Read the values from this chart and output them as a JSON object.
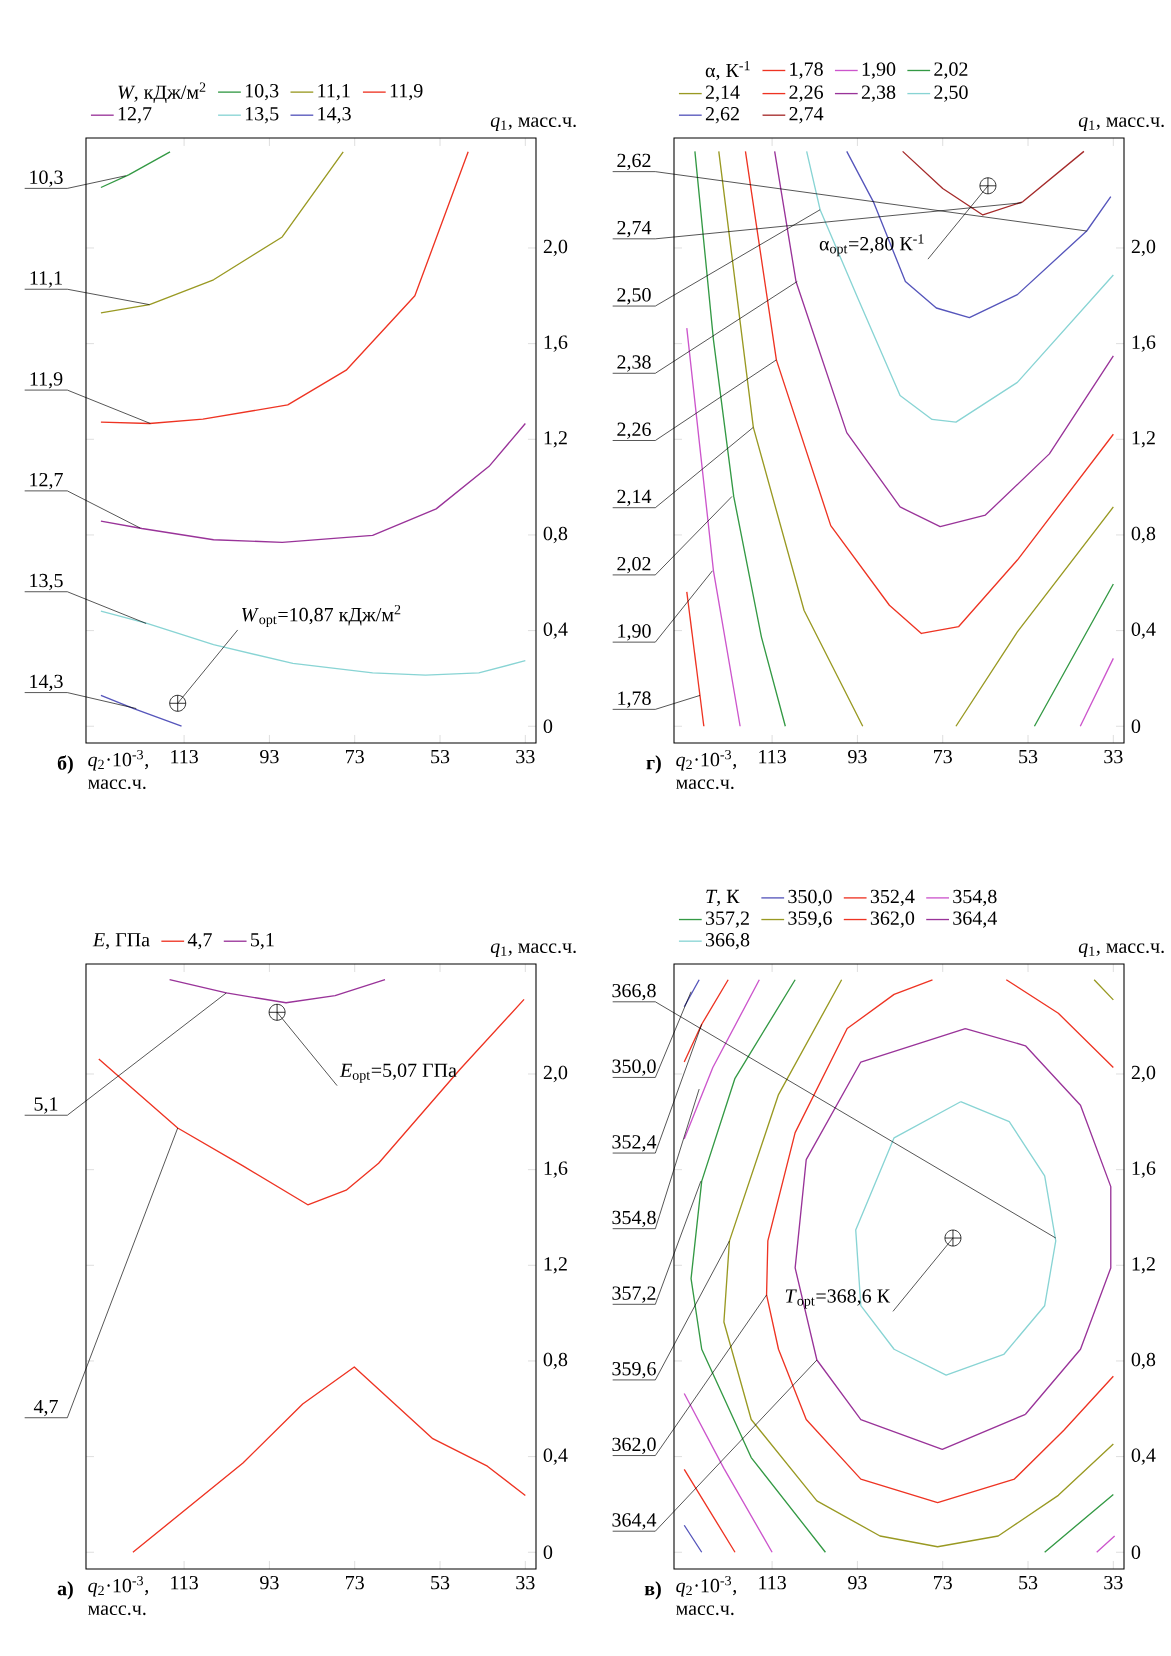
{
  "chart_data": [
    {
      "type": "line",
      "title": "а)",
      "xlabel": "*q*$_{2}$·10$^{-3}$, масс.ч.",
      "ylabel": "*q*$_{1}$, масс.ч.",
      "legend_title": "*E*, ГПа",
      "legend": "top left",
      "xlim": [
        136,
        30.5
      ],
      "ylim": [
        -0.07,
        2.46
      ],
      "xticks": [
        33,
        53,
        73,
        93,
        113
      ],
      "yticks": [
        0,
        {
          "value": 0.4,
          "label": "0,4"
        },
        {
          "value": 0.8,
          "label": "0,8"
        },
        {
          "value": 1.2,
          "label": "1,2"
        },
        {
          "value": 1.6,
          "label": "1,6"
        },
        {
          "value": 2.0,
          "label": "2,0"
        }
      ],
      "series": [
        {
          "name": "4,7",
          "color": "#ee3322",
          "x": [
            125.0,
            99.2,
            85.2,
            73.1,
            54.7,
            41.9,
            33.0,
            null,
            133.0,
            114.5,
            99.2,
            84.0,
            75.0,
            67.4,
            48.3,
            33.3
          ],
          "values": [
            0,
            0.373,
            0.62,
            0.775,
            0.475,
            0.36,
            0.237,
            null,
            2.063,
            1.774,
            1.616,
            1.453,
            1.514,
            1.627,
            2.02,
            2.312
          ]
        },
        {
          "name": "5,1",
          "color": "#993399",
          "x": [
            116.4,
            103.1,
            89.1,
            77.6,
            65.9
          ],
          "values": [
            2.395,
            2.339,
            2.298,
            2.328,
            2.395
          ]
        },
        {
          "type": "scatter",
          "name": "*E*$_{opt}$=5,07 ГПа",
          "color": "#000000",
          "marker": "cross",
          "x": [
            91.2
          ],
          "values": [
            2.258
          ]
        }
      ],
      "annotations": [
        {
          "text": "4,7",
          "x": 114.5,
          "y": 1.774
        },
        {
          "text": "5,1",
          "x": 103.1,
          "y": 2.339
        }
      ]
    },
    {
      "type": "line",
      "title": "б)",
      "xlabel": "*q*$_{2}$·10$^{-3}$, масс.ч.",
      "ylabel": "*q*$_{1}$, масс.ч.",
      "legend_title": "*W*, кДж/м$^{2}$",
      "legend": "top left",
      "xlim": [
        136,
        30.5
      ],
      "ylim": [
        -0.07,
        2.46
      ],
      "xticks": [
        33,
        53,
        73,
        93,
        113
      ],
      "yticks": [
        0,
        {
          "value": 0.4,
          "label": "0,4"
        },
        {
          "value": 0.8,
          "label": "0,8"
        },
        {
          "value": 1.2,
          "label": "1,2"
        },
        {
          "value": 1.6,
          "label": "1,6"
        },
        {
          "value": 2.0,
          "label": "2,0"
        }
      ],
      "series": [
        {
          "name": "10,3",
          "color": "#339944",
          "x": [
            132.5,
            126.0,
            116.3
          ],
          "values": [
            2.253,
            2.306,
            2.402
          ]
        },
        {
          "name": "11,1",
          "color": "#999922",
          "x": [
            132.5,
            121.1,
            106.1,
            90.0,
            75.7
          ],
          "values": [
            1.729,
            1.763,
            1.867,
            2.046,
            2.402
          ]
        },
        {
          "name": "11,9",
          "color": "#ee3322",
          "x": [
            132.5,
            121.1,
            108.6,
            88.7,
            75.0,
            58.9,
            46.4
          ],
          "values": [
            1.272,
            1.266,
            1.284,
            1.344,
            1.489,
            1.8,
            2.402
          ]
        },
        {
          "name": "12,7",
          "color": "#993399",
          "x": [
            132.5,
            122.9,
            106.1,
            90.0,
            68.8,
            53.9,
            41.5,
            33.0
          ],
          "values": [
            0.858,
            0.827,
            0.78,
            0.769,
            0.798,
            0.909,
            1.087,
            1.266
          ]
        },
        {
          "name": "13,5",
          "color": "#88d4d4",
          "x": [
            132.5,
            121.7,
            106.1,
            87.5,
            68.8,
            56.4,
            43.9,
            33.0
          ],
          "values": [
            0.481,
            0.43,
            0.341,
            0.263,
            0.223,
            0.214,
            0.223,
            0.274
          ]
        },
        {
          "name": "14,3",
          "color": "#5555bb",
          "x": [
            132.5,
            124.8,
            113.6
          ],
          "values": [
            0.129,
            0.074,
            0
          ]
        },
        {
          "type": "scatter",
          "name": "*W*$_{opt}$=10,87 кДж/м$^{2}$",
          "color": "#000000",
          "marker": "cross",
          "x": [
            114.5
          ],
          "values": [
            0.096
          ]
        }
      ],
      "annotations": [
        {
          "text": "14,3",
          "x": 124.2,
          "y": 0.074
        },
        {
          "text": "13,5",
          "x": 121.9,
          "y": 0.43
        },
        {
          "text": "12,7",
          "x": 123.3,
          "y": 0.829
        },
        {
          "text": "11,9",
          "x": 120.9,
          "y": 1.266
        },
        {
          "text": "11,1",
          "x": 121.1,
          "y": 1.763
        },
        {
          "text": "10,3",
          "x": 126.7,
          "y": 2.302
        }
      ]
    },
    {
      "type": "line",
      "title": "в)",
      "xlabel": "*q*$_{2}$·10$^{-3}$, масс.ч.",
      "ylabel": "*q*$_{1}$, масс.ч.",
      "legend_title": "*T*, К",
      "legend": "top left",
      "xlim": [
        136,
        30.5
      ],
      "ylim": [
        -0.07,
        2.46
      ],
      "xticks": [
        33,
        53,
        73,
        93,
        113
      ],
      "yticks": [
        0,
        {
          "value": 0.4,
          "label": "0,4"
        },
        {
          "value": 0.8,
          "label": "0,8"
        },
        {
          "value": 1.2,
          "label": "1,2"
        },
        {
          "value": 1.6,
          "label": "1,6"
        },
        {
          "value": 2.0,
          "label": "2,0"
        }
      ],
      "series": [
        {
          "name": "350,0",
          "color": "#5555bb",
          "x": [
            133.6,
            129.5,
            null,
            133.6,
            130.1
          ],
          "values": [
            0.113,
            0,
            null,
            2.281,
            2.394
          ]
        },
        {
          "name": "352,4",
          "color": "#ee3322",
          "x": [
            133.6,
            121.7,
            null,
            133.6,
            129.5,
            123.3
          ],
          "values": [
            0.347,
            0,
            null,
            2.05,
            2.208,
            2.394
          ]
        },
        {
          "name": "354,8",
          "color": "#cc55cc",
          "x": [
            133.6,
            124.3,
            113.0,
            null,
            133.6,
            126.9,
            116.0,
            null,
            36.9,
            32.7
          ],
          "values": [
            0.664,
            0.351,
            0,
            null,
            1.728,
            2.027,
            2.394,
            null,
            0,
            0.068
          ]
        },
        {
          "name": "357,2",
          "color": "#339944",
          "x": [
            100.5,
            117.9,
            129.5,
            132.0,
            129.5,
            121.7,
            107.6,
            null,
            49.1,
            33.0
          ],
          "values": [
            0,
            0.396,
            0.849,
            1.144,
            1.552,
            1.982,
            2.394,
            null,
            0,
            0.242
          ]
        },
        {
          "name": "359,6",
          "color": "#999922",
          "x": [
            96.7,
            111.5,
            123.0,
            124.3,
            117.9,
            102.5,
            87.7,
            74.2,
            60.0,
            45.9,
            33.0,
            null,
            37.5,
            33.0
          ],
          "values": [
            2.394,
            1.914,
            1.302,
            0.963,
            0.555,
            0.215,
            0.068,
            0.023,
            0.068,
            0.238,
            0.453,
            null,
            2.394,
            2.31
          ]
        },
        {
          "name": "362,0",
          "color": "#ee3322",
          "x": [
            75.4,
            84.4,
            95.4,
            107.6,
            114.0,
            114.3,
            111.5,
            105.0,
            92.2,
            74.2,
            56.2,
            44.6,
            33.0,
            null,
            58.1,
            45.9,
            33.0
          ],
          "values": [
            2.394,
            2.333,
            2.19,
            1.755,
            1.302,
            1.076,
            0.849,
            0.555,
            0.306,
            0.208,
            0.306,
            0.51,
            0.736,
            null,
            2.394,
            2.254,
            2.027
          ]
        },
        {
          "name": "364,4",
          "color": "#993399",
          "x": [
            67.7,
            92.2,
            105.0,
            107.6,
            102.5,
            92.2,
            73.1,
            53.6,
            null,
            53.6,
            40.7,
            33.6,
            33.6,
            40.7,
            53.6,
            67.7
          ],
          "values": [
            2.19,
            2.05,
            1.642,
            1.189,
            0.804,
            0.555,
            0.43,
            0.577,
            null,
            0.577,
            0.849,
            1.189,
            1.529,
            1.869,
            2.118,
            2.19
          ]
        },
        {
          "name": "366,8",
          "color": "#88d4d4",
          "x": [
            68.8,
            84.4,
            93.4,
            92.2,
            84.4,
            72.2,
            58.7,
            null,
            58.7,
            49.1,
            46.5,
            49.1,
            57.4,
            68.8
          ],
          "values": [
            1.884,
            1.733,
            1.348,
            1.031,
            0.849,
            0.741,
            0.827,
            null,
            0.827,
            1.031,
            1.302,
            1.574,
            1.801,
            1.884
          ]
        },
        {
          "type": "scatter",
          "name": "*T*$_{opt}$=368,6 К",
          "color": "#000000",
          "marker": "cross",
          "x": [
            70.6
          ],
          "values": [
            1.314
          ]
        }
      ],
      "annotations": [
        {
          "text": "364,4",
          "x": 102.5,
          "y": 0.804
        },
        {
          "text": "362,0",
          "x": 114.3,
          "y": 1.076
        },
        {
          "text": "359,6",
          "x": 123.0,
          "y": 1.302
        },
        {
          "text": "357,2",
          "x": 129.7,
          "y": 1.552
        },
        {
          "text": "354,8",
          "x": 130.1,
          "y": 1.937
        },
        {
          "text": "352,4",
          "x": 129.5,
          "y": 2.208
        },
        {
          "text": "350,0",
          "x": 132.0,
          "y": 2.344
        },
        {
          "text": "366,8",
          "x": 46.5,
          "y": 1.314
        }
      ]
    },
    {
      "type": "line",
      "title": "г)",
      "xlabel": "*q*$_{2}$·10$^{-3}$, масс.ч.",
      "ylabel": "*q*$_{1}$, масс.ч.",
      "legend_title": "α, К$^{-1}$",
      "legend": "top left",
      "xlim": [
        136,
        30.5
      ],
      "ylim": [
        -0.07,
        2.46
      ],
      "xticks": [
        33,
        53,
        73,
        93,
        113
      ],
      "yticks": [
        0,
        {
          "value": 0.4,
          "label": "0,4"
        },
        {
          "value": 0.8,
          "label": "0,8"
        },
        {
          "value": 1.2,
          "label": "1,2"
        },
        {
          "value": 1.6,
          "label": "1,6"
        },
        {
          "value": 2.0,
          "label": "2,0"
        }
      ],
      "series": [
        {
          "name": "1,78",
          "color": "#ee3322",
          "x": [
            133.0,
            129.0
          ],
          "values": [
            0.562,
            0
          ]
        },
        {
          "name": "1,90",
          "color": "#cc55cc",
          "x": [
            133.0,
            126.75,
            120.5,
            null,
            40.75,
            33.0
          ],
          "values": [
            1.665,
            0.65,
            0,
            null,
            0,
            0.284
          ]
        },
        {
          "name": "2,02",
          "color": "#339944",
          "x": [
            131.1,
            126.75,
            122.0,
            115.5,
            109.9,
            null,
            51.5,
            33.0
          ],
          "values": [
            2.404,
            1.616,
            0.961,
            0.373,
            0,
            null,
            0,
            0.595
          ]
        },
        {
          "name": "2,14",
          "color": "#999922",
          "x": [
            125.5,
            117.4,
            105.5,
            91.75,
            null,
            69.9,
            55.5,
            33.0
          ],
          "values": [
            2.404,
            1.25,
            0.484,
            0,
            null,
            0,
            0.395,
            0.917
          ]
        },
        {
          "name": "2,26",
          "color": "#ee3322",
          "x": [
            119.25,
            112.0,
            99.25,
            85.5,
            78.0,
            69.25,
            55.5,
            33.0
          ],
          "values": [
            2.404,
            1.532,
            0.839,
            0.506,
            0.388,
            0.417,
            0.695,
            1.221
          ]
        },
        {
          "name": "2,38",
          "color": "#993399",
          "x": [
            112.4,
            107.4,
            95.5,
            83.0,
            73.6,
            63.0,
            48.0,
            33.0
          ],
          "values": [
            2.404,
            1.86,
            1.228,
            0.917,
            0.835,
            0.883,
            1.139,
            1.549
          ]
        },
        {
          "name": "2,50",
          "color": "#88d4d4",
          "x": [
            104.9,
            101.75,
            93.0,
            83.0,
            75.5,
            69.9,
            55.5,
            33.0
          ],
          "values": [
            2.404,
            2.16,
            1.794,
            1.383,
            1.283,
            1.272,
            1.438,
            1.887
          ]
        },
        {
          "name": "2,62",
          "color": "#5555bb",
          "x": [
            95.5,
            89.25,
            81.75,
            74.5,
            66.75,
            55.5,
            39.25,
            33.6
          ],
          "values": [
            2.404,
            2.193,
            1.86,
            1.749,
            1.709,
            1.805,
            2.071,
            2.215
          ]
        },
        {
          "name": "2,74",
          "color": "#a52a2a",
          "x": [
            82.4,
            73.0,
            63.6,
            54.25,
            39.9
          ],
          "values": [
            2.404,
            2.249,
            2.138,
            2.193,
            2.404
          ]
        },
        {
          "type": "scatter",
          "name": "α$_{opt}$=2,80 К$^{-1}$",
          "color": "#000000",
          "marker": "cross",
          "x": [
            62.4
          ],
          "values": [
            2.26
          ]
        }
      ],
      "annotations": [
        {
          "text": "1,78",
          "x": 129.9,
          "y": 0.129
        },
        {
          "text": "1,90",
          "x": 127.0,
          "y": 0.65
        },
        {
          "text": "2,02",
          "x": 122.4,
          "y": 0.961
        },
        {
          "text": "2,14",
          "x": 117.4,
          "y": 1.25
        },
        {
          "text": "2,26",
          "x": 112.0,
          "y": 1.532
        },
        {
          "text": "2,38",
          "x": 107.1,
          "y": 1.86
        },
        {
          "text": "2,50",
          "x": 101.75,
          "y": 2.16
        },
        {
          "text": "2,74",
          "x": 54.5,
          "y": 2.189
        },
        {
          "text": "2,62",
          "x": 39.25,
          "y": 2.071
        }
      ]
    }
  ]
}
